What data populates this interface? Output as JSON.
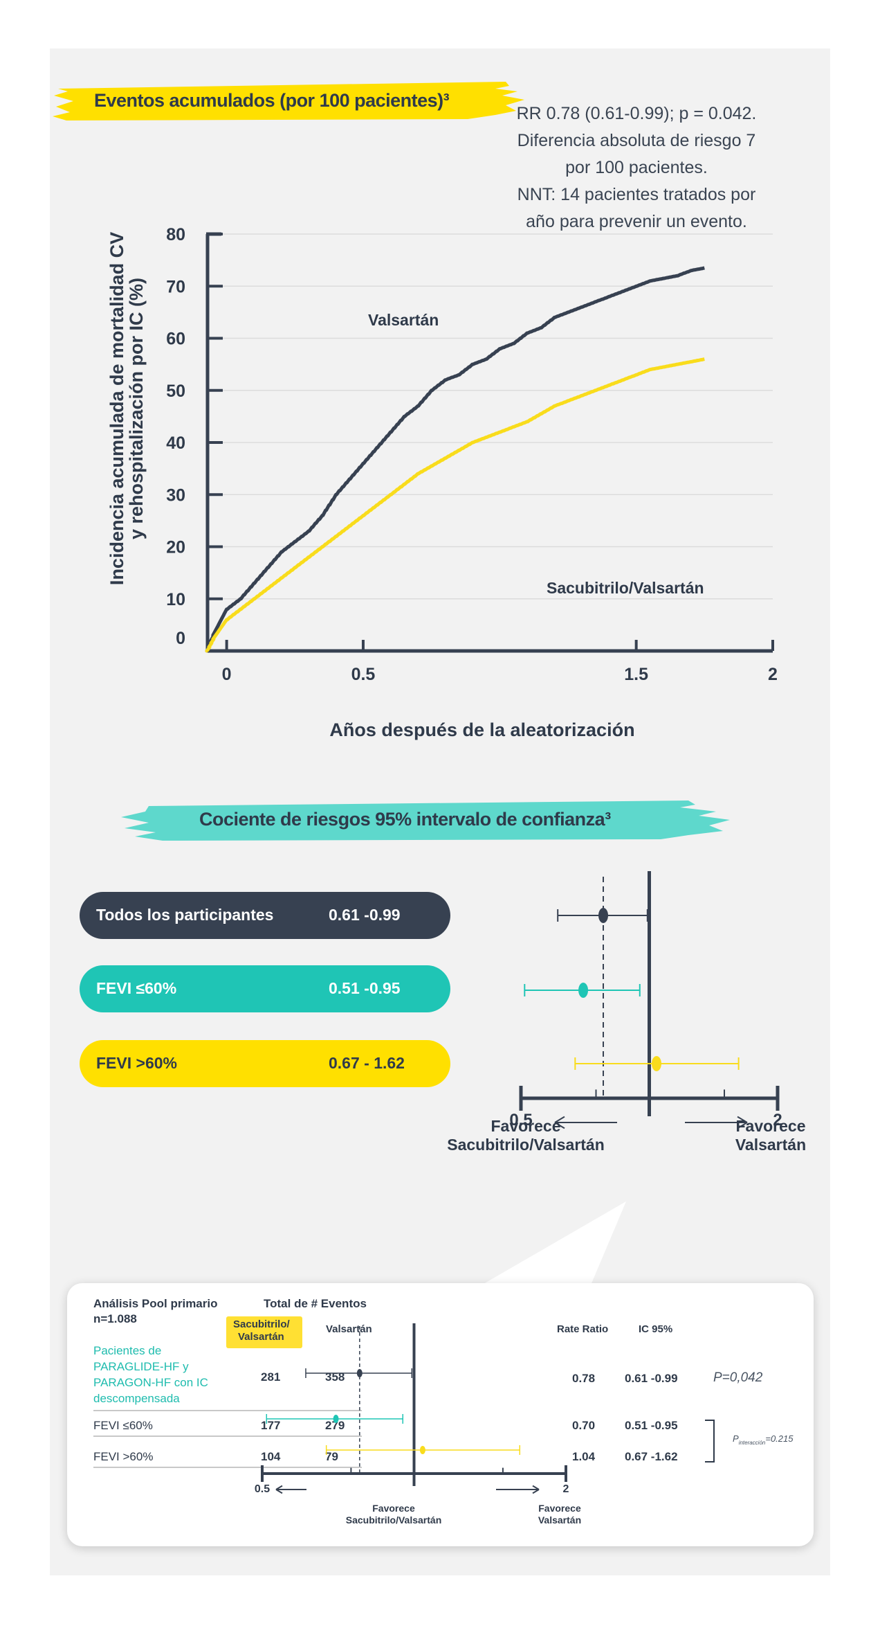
{
  "colors": {
    "valsartan": "#374151",
    "sacubitril": "#f9dc1c",
    "teal": "#1fc5b5",
    "accent_yellow": "#ffe000",
    "mint": "#5ed8cc"
  },
  "section1": {
    "title": "Eventos acumulados (por 100 pacientes)³",
    "stats": [
      "RR 0.78 (0.61-0.99); p = 0.042.",
      "Diferencia absoluta de riesgo  7",
      "por 100 pacientes.",
      "NNT: 14 pacientes tratados por",
      "año para prevenir un evento."
    ]
  },
  "chart_data": [
    {
      "type": "line",
      "xlabel": "Años después de la aleatorización",
      "ylabel_line1": "Incidencia acumulada de mortalidad CV",
      "ylabel_line2": "y rehospitalización por IC (%)",
      "xlim": [
        -0.07,
        2
      ],
      "ylim": [
        0,
        80
      ],
      "xticks": [
        "0",
        "0.5",
        "1.5",
        "2"
      ],
      "xtick_values": [
        0,
        0.5,
        1.5,
        2
      ],
      "yticks": [
        "0",
        "10",
        "20",
        "30",
        "40",
        "50",
        "60",
        "70",
        "80"
      ],
      "ytick_values": [
        0,
        10,
        20,
        30,
        40,
        50,
        60,
        70,
        80
      ],
      "series": [
        {
          "name": "Valsartán",
          "x": [
            -0.07,
            -0.04,
            0,
            0.05,
            0.1,
            0.15,
            0.2,
            0.25,
            0.3,
            0.35,
            0.4,
            0.45,
            0.5,
            0.55,
            0.6,
            0.65,
            0.7,
            0.75,
            0.8,
            0.85,
            0.9,
            0.95,
            1.0,
            1.05,
            1.1,
            1.15,
            1.2,
            1.25,
            1.3,
            1.35,
            1.4,
            1.45,
            1.5,
            1.55,
            1.6,
            1.65,
            1.7,
            1.75
          ],
          "y": [
            0,
            4,
            8,
            10,
            13,
            16,
            19,
            21,
            23,
            26,
            30,
            33,
            36,
            39,
            42,
            45,
            47,
            50,
            52,
            53,
            55,
            56,
            58,
            59,
            61,
            62,
            64,
            65,
            66,
            67,
            68,
            69,
            70,
            71,
            71.5,
            72,
            73,
            73.5
          ]
        },
        {
          "name": "Sacubitrilo/Valsartán",
          "x": [
            -0.07,
            -0.04,
            0,
            0.05,
            0.1,
            0.15,
            0.2,
            0.25,
            0.3,
            0.35,
            0.4,
            0.45,
            0.5,
            0.55,
            0.6,
            0.65,
            0.7,
            0.75,
            0.8,
            0.85,
            0.9,
            0.95,
            1.0,
            1.05,
            1.1,
            1.15,
            1.2,
            1.25,
            1.3,
            1.35,
            1.4,
            1.45,
            1.5,
            1.55,
            1.6,
            1.65,
            1.7,
            1.75
          ],
          "y": [
            0,
            3,
            6,
            8,
            10,
            12,
            14,
            16,
            18,
            20,
            22,
            24,
            26,
            28,
            30,
            32,
            34,
            35.5,
            37,
            38.5,
            40,
            41,
            42,
            43,
            44,
            45.5,
            47,
            48,
            49,
            50,
            51,
            52,
            53,
            54,
            54.5,
            55,
            55.5,
            56
          ]
        }
      ]
    },
    {
      "type": "forest",
      "title": "Cociente de riesgos 95% intervalo de confianza³",
      "xlim": [
        0.5,
        2
      ],
      "axis_labels": [
        "0.5",
        "2"
      ],
      "favors_left": [
        "Favorece",
        "Sacubitrilo/Valsartán"
      ],
      "favors_right": [
        "Favorece",
        "Valsartán"
      ],
      "rows": [
        {
          "label": "Todos los participantes",
          "ci_text": "0.61 -0.99",
          "point": 0.78,
          "low": 0.61,
          "high": 0.99
        },
        {
          "label": "FEVI ≤60%",
          "ci_text": "0.51 -0.95",
          "point": 0.7,
          "low": 0.51,
          "high": 0.95
        },
        {
          "label": "FEVI >60%",
          "ci_text": "0.67 - 1.62",
          "point": 1.04,
          "low": 0.67,
          "high": 1.62
        }
      ]
    },
    {
      "type": "table",
      "header_col1_line1": "Análisis Pool primario",
      "header_col1_line2": "n=1.088",
      "header_events": "Total de # Eventos",
      "header_sacu_line1": "Sacubitrilo/",
      "header_sacu_line2": "Valsartán",
      "header_val": "Valsartán",
      "header_rr": "Rate Ratio",
      "header_ci": "IC 95%",
      "row1_label": [
        "Pacientes de",
        "PARAGLIDE-HF y",
        "PARAGON-HF con IC",
        "descompensada"
      ],
      "rows": [
        {
          "label": "Pacientes de PARAGLIDE-HF y PARAGON-HF con IC descompensada",
          "sacu": "281",
          "val": "358",
          "rr": "0.78",
          "ci": "0.61 -0.99",
          "point": 0.78,
          "low": 0.61,
          "high": 0.99
        },
        {
          "label": "FEVI ≤60%",
          "sacu": "177",
          "val": "279",
          "rr": "0.70",
          "ci": "0.51 -0.95",
          "point": 0.7,
          "low": 0.51,
          "high": 0.95
        },
        {
          "label": "FEVI >60%",
          "sacu": "104",
          "val": "79",
          "rr": "1.04",
          "ci": "0.67 -1.62",
          "point": 1.04,
          "low": 0.67,
          "high": 1.62
        }
      ],
      "p_value": "P=0,042",
      "p_inter_main": "P",
      "p_inter_sub": "interacción",
      "p_inter_value": "=0.215",
      "axis_labels": [
        "0.5",
        "2"
      ],
      "favors_left": [
        "Favorece",
        "Sacubitrilo/Valsartán"
      ],
      "favors_right": [
        "Favorece",
        "Valsartán"
      ]
    }
  ]
}
